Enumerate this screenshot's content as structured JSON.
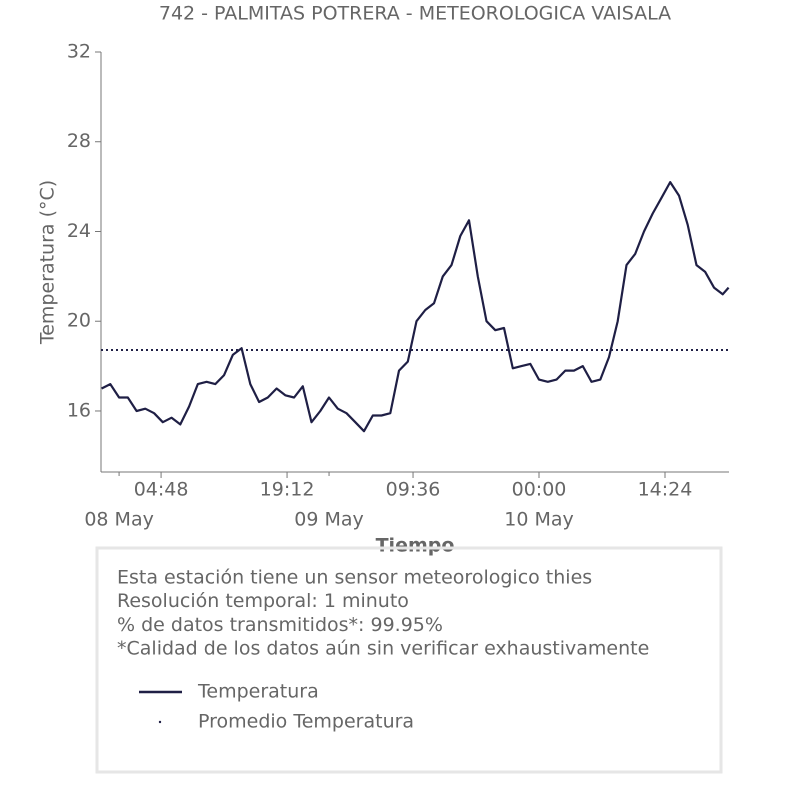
{
  "chart_data": {
    "type": "line",
    "title": "742 - PALMITAS POTRERA - METEOROLOGICA VAISALA",
    "x_label": "Tiempo",
    "y_label": "Temperatura (°C)",
    "x": [
      "07 May 22:00",
      "07 May 23:00",
      "08 May 00:00",
      "08 May 01:00",
      "08 May 02:00",
      "08 May 03:00",
      "08 May 04:00",
      "08 May 05:00",
      "08 May 06:00",
      "08 May 07:00",
      "08 May 08:00",
      "08 May 09:00",
      "08 May 10:00",
      "08 May 11:00",
      "08 May 12:00",
      "08 May 13:00",
      "08 May 14:00",
      "08 May 15:00",
      "08 May 16:00",
      "08 May 17:00",
      "08 May 18:00",
      "08 May 19:00",
      "08 May 20:00",
      "08 May 21:00",
      "08 May 22:00",
      "08 May 23:00",
      "09 May 00:00",
      "09 May 01:00",
      "09 May 02:00",
      "09 May 03:00",
      "09 May 04:00",
      "09 May 05:00",
      "09 May 06:00",
      "09 May 07:00",
      "09 May 08:00",
      "09 May 09:00",
      "09 May 10:00",
      "09 May 11:00",
      "09 May 12:00",
      "09 May 13:00",
      "09 May 14:00",
      "09 May 15:00",
      "09 May 16:00",
      "09 May 17:00",
      "09 May 18:00",
      "09 May 19:00",
      "09 May 20:00",
      "09 May 21:00",
      "09 May 22:00",
      "09 May 23:00",
      "10 May 00:00",
      "10 May 01:00",
      "10 May 02:00",
      "10 May 03:00",
      "10 May 04:00",
      "10 May 05:00",
      "10 May 06:00",
      "10 May 07:00",
      "10 May 08:00",
      "10 May 09:00",
      "10 May 10:00",
      "10 May 11:00",
      "10 May 12:00",
      "10 May 13:00",
      "10 May 14:00",
      "10 May 15:00",
      "10 May 16:00",
      "10 May 17:00",
      "10 May 18:00",
      "10 May 19:00",
      "10 May 20:00",
      "10 May 21:00",
      "10 May 21:40"
    ],
    "series": [
      {
        "name": "Temperatura",
        "color": "#1f1f45",
        "values": [
          17.0,
          17.2,
          16.6,
          16.6,
          16.0,
          16.1,
          15.9,
          15.5,
          15.7,
          15.4,
          16.2,
          17.2,
          17.3,
          17.2,
          17.6,
          18.5,
          18.8,
          17.2,
          16.4,
          16.6,
          17.0,
          16.7,
          16.6,
          17.1,
          15.5,
          16.0,
          16.6,
          16.1,
          15.9,
          15.5,
          15.1,
          15.8,
          15.8,
          15.9,
          17.8,
          18.2,
          20.0,
          20.5,
          20.8,
          22.0,
          22.5,
          23.8,
          24.5,
          22.0,
          20.0,
          19.6,
          19.7,
          17.9,
          18.0,
          18.1,
          17.4,
          17.3,
          17.4,
          17.8,
          17.8,
          18.0,
          17.3,
          17.4,
          18.4,
          20.0,
          22.5,
          23.0,
          24.0,
          24.8,
          25.5,
          26.2,
          25.6,
          24.3,
          22.5,
          22.2,
          21.5,
          21.2,
          21.5
        ]
      },
      {
        "name": "Promedio Temperatura",
        "color": "#1f1f45",
        "style": "dotted",
        "value": 18.72
      }
    ],
    "xlim": [
      "07 May 21:56",
      "10 May 21:43"
    ],
    "xticks": [
      {
        "value": "08 May 04:48",
        "label": "04:48"
      },
      {
        "value": "08 May 19:12",
        "label": "19:12"
      },
      {
        "value": "09 May 09:36",
        "label": "09:36"
      },
      {
        "value": "10 May 00:00",
        "label": "00:00"
      },
      {
        "value": "10 May 14:24",
        "label": "14:24"
      }
    ],
    "date_ticks": [
      {
        "value": "08 May 00:00",
        "label": "08 May"
      },
      {
        "value": "09 May 00:00",
        "label": "09 May"
      },
      {
        "value": "10 May 00:00",
        "label": "10 May"
      }
    ],
    "ylim": [
      13.28,
      32
    ],
    "yticks": [
      16,
      20,
      24,
      28,
      32
    ],
    "notes": [
      "Esta estación tiene un sensor meteorologico thies",
      "Resolución temporal: 1 minuto",
      "% de datos transmitidos*: 99.95%",
      "*Calidad de los datos aún sin verificar exhaustivamente"
    ]
  }
}
